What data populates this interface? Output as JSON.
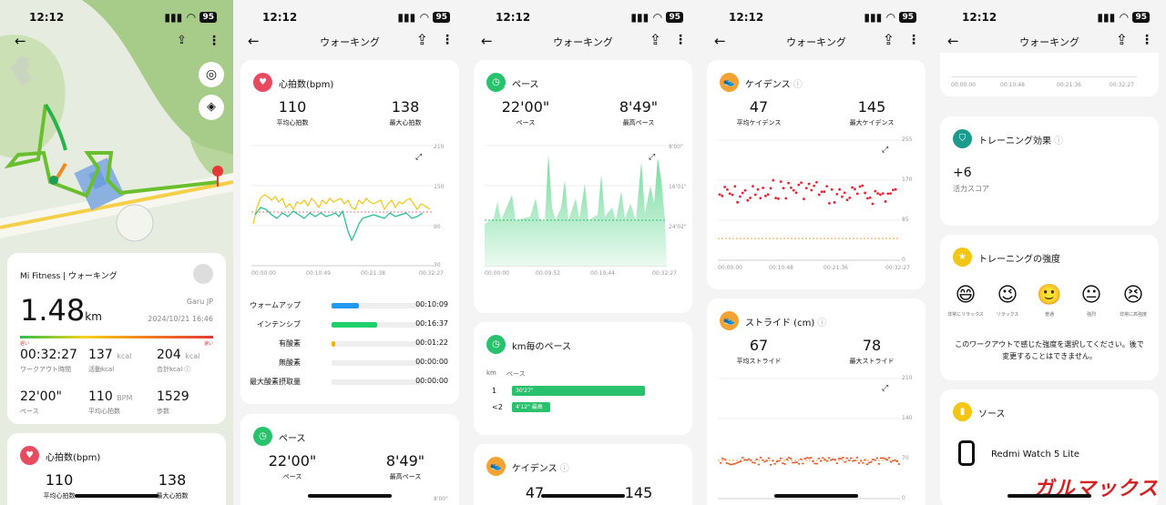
{
  "status": {
    "time": "12:12",
    "battery": "95"
  },
  "p1": {
    "source": "Mi Fitness | ウォーキング",
    "distance": "1.48",
    "unit": "km",
    "user": "Garu JP",
    "date": "2024/10/21 16:46",
    "speed_slow": "遅い",
    "speed_fast": "速い",
    "stats": [
      {
        "v": "00:32:27",
        "u": "",
        "l": "ワークアウト時間"
      },
      {
        "v": "137",
        "u": "kcal",
        "l": "活動kcal"
      },
      {
        "v": "204",
        "u": "kcal",
        "l": "合計kcal ⓘ"
      },
      {
        "v": "22'00\"",
        "u": "",
        "l": "ペース"
      },
      {
        "v": "110",
        "u": "BPM",
        "l": "平均心拍数"
      },
      {
        "v": "1529",
        "u": "",
        "l": "歩数"
      }
    ],
    "hr_title": "心拍数(bpm)",
    "hr_avg": "110",
    "hr_avg_l": "平均心拍数",
    "hr_max": "138",
    "hr_max_l": "最大心拍数"
  },
  "p2": {
    "title": "ウォーキング",
    "hr_title": "心拍数(bpm)",
    "avg": "110",
    "avg_l": "平均心拍数",
    "max": "138",
    "max_l": "最大心拍数",
    "y": [
      "210",
      "150",
      "90",
      "30"
    ],
    "x": [
      "00:00:00",
      "00:10:49",
      "00:21:38",
      "00:32:27"
    ],
    "zones": [
      {
        "n": "ウォームアップ",
        "t": "00:10:09",
        "f": 0.3,
        "c": "#1e9bf0"
      },
      {
        "n": "インテンシブ",
        "t": "00:16:37",
        "f": 0.5,
        "c": "#1fcf6a"
      },
      {
        "n": "有酸素",
        "t": "00:01:22",
        "f": 0.04,
        "c": "#f5b400"
      },
      {
        "n": "無酸素",
        "t": "00:00:00",
        "f": 0,
        "c": "#e33"
      },
      {
        "n": "最大酸素摂取量",
        "t": "00:00:00",
        "f": 0,
        "c": "#e33"
      }
    ],
    "pace_title": "ペース",
    "pace": "22'00\"",
    "pace_l": "ペース",
    "best": "8'49\"",
    "best_l": "最高ペース",
    "y_top": "8'00\""
  },
  "p3": {
    "title": "ウォーキング",
    "pace_title": "ペース",
    "pace": "22'00\"",
    "pace_l": "ペース",
    "best": "8'49\"",
    "best_l": "最高ペース",
    "y": [
      "8'00\"",
      "16'01\"",
      "24'02\""
    ],
    "x": [
      "00:00:00",
      "00:09:52",
      "00:19:44",
      "00:32:27"
    ],
    "km_title": "km毎のペース",
    "km_h": "km",
    "pace_h": "ペース",
    "rows": [
      {
        "k": "1",
        "v": "30'27\"",
        "w": 1,
        "badge": ""
      },
      {
        "k": "<2",
        "v": "4'12\"",
        "w": 0.29,
        "badge": "最高"
      }
    ],
    "cad_title": "ケイデンス",
    "cad_avg": "47",
    "cad_max": "145"
  },
  "p4": {
    "title": "ウォーキング",
    "cad_title": "ケイデンス",
    "avg": "47",
    "avg_l": "平均ケイデンス",
    "max": "145",
    "max_l": "最大ケイデンス",
    "y": [
      "255",
      "170",
      "85",
      "0"
    ],
    "x": [
      "00:00:00",
      "00:10:48",
      "00:21:36",
      "00:32:27"
    ],
    "str_title": "ストライド (cm)",
    "s_avg": "67",
    "s_avg_l": "平均ストライド",
    "s_max": "78",
    "s_max_l": "最大ストライド",
    "sy": [
      "210",
      "140",
      "70",
      "0"
    ]
  },
  "p5": {
    "title": "ウォーキング",
    "x": [
      "00:00:00",
      "00:10:48",
      "00:21:36",
      "00:32:27"
    ],
    "te_title": "トレーニング効果",
    "te_val": "+6",
    "te_l": "活力スコア",
    "int_title": "トレーニングの強度",
    "faces": [
      {
        "e": "😄",
        "l": "非常にリラックス"
      },
      {
        "e": "😉",
        "l": "リラックス"
      },
      {
        "e": "🙂",
        "l": "普通"
      },
      {
        "e": "😐",
        "l": "強烈"
      },
      {
        "e": "😣",
        "l": "非常に高強度"
      }
    ],
    "int_note": "このワークアウトで感じた強度を選択してください。後で変更することはできません。",
    "src_title": "ソース",
    "device": "Redmi Watch 5 Lite",
    "watermark": "ガルマックス"
  },
  "colors": {
    "red": "#e84a5f",
    "green": "#27c26b",
    "orange": "#f3a332",
    "yellow": "#f3c613",
    "teal": "#1a9b8e"
  }
}
